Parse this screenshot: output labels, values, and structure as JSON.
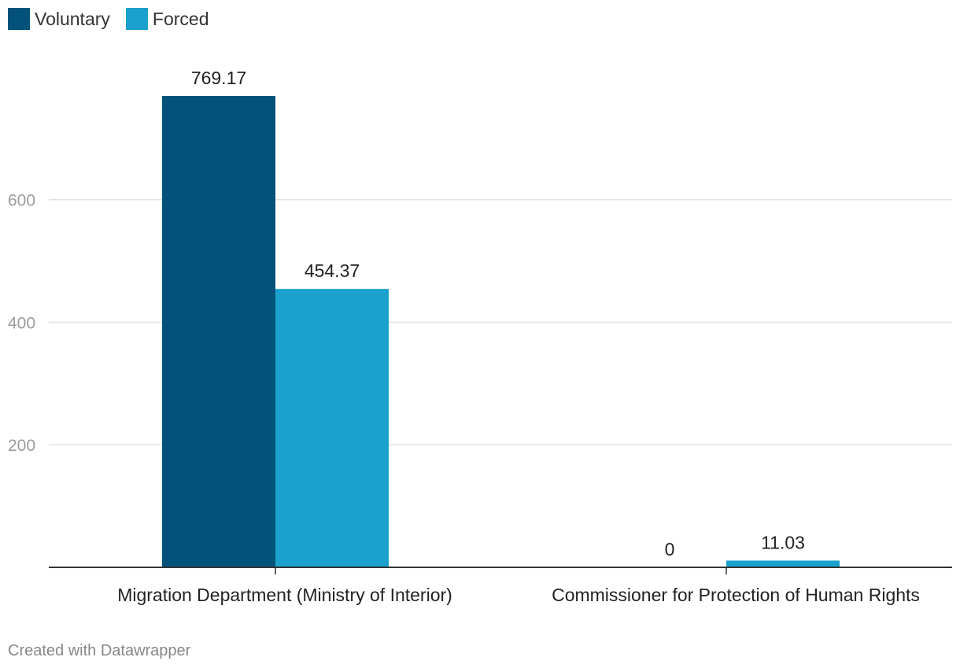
{
  "legend": [
    {
      "label": "Voluntary",
      "color": "#03527a"
    },
    {
      "label": "Forced",
      "color": "#1aa1cd"
    }
  ],
  "footer": "Created with Datawrapper",
  "chart_data": {
    "type": "bar",
    "title": "",
    "xlabel": "",
    "ylabel": "",
    "categories": [
      "Migration Department (Ministry of Interior)",
      "Commissioner for Protection of Human Rights"
    ],
    "series": [
      {
        "name": "Voluntary",
        "values": [
          769.17,
          0
        ],
        "labels": [
          "769.17",
          "0"
        ]
      },
      {
        "name": "Forced",
        "values": [
          454.37,
          11.03
        ],
        "labels": [
          "454.37",
          "11.03"
        ]
      }
    ],
    "yticks": [
      200,
      400,
      600
    ],
    "ylim": [
      0,
      769.17
    ],
    "grid": true
  }
}
